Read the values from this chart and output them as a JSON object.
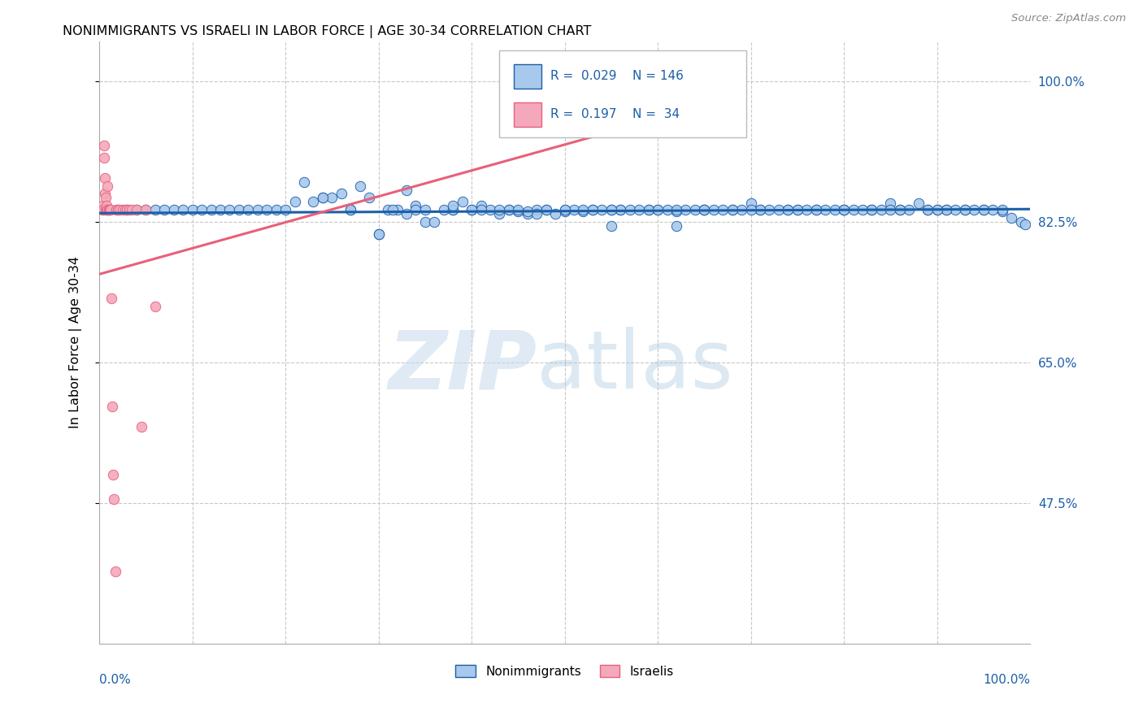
{
  "title": "NONIMMIGRANTS VS ISRAELI IN LABOR FORCE | AGE 30-34 CORRELATION CHART",
  "source": "Source: ZipAtlas.com",
  "ylabel": "In Labor Force | Age 30-34",
  "ytick_labels": [
    "100.0%",
    "82.5%",
    "65.0%",
    "47.5%"
  ],
  "ytick_values": [
    1.0,
    0.825,
    0.65,
    0.475
  ],
  "xlim": [
    0.0,
    1.0
  ],
  "ylim": [
    0.3,
    1.05
  ],
  "blue_color": "#A8C8EC",
  "pink_color": "#F4A8BC",
  "blue_line_color": "#1B5FA8",
  "pink_line_color": "#E8607A",
  "scatter_blue_x": [
    0.01,
    0.02,
    0.03,
    0.04,
    0.05,
    0.06,
    0.07,
    0.08,
    0.09,
    0.1,
    0.11,
    0.12,
    0.13,
    0.14,
    0.15,
    0.16,
    0.17,
    0.18,
    0.19,
    0.2,
    0.21,
    0.22,
    0.23,
    0.24,
    0.25,
    0.26,
    0.27,
    0.28,
    0.29,
    0.3,
    0.31,
    0.32,
    0.33,
    0.34,
    0.35,
    0.36,
    0.37,
    0.38,
    0.39,
    0.4,
    0.41,
    0.42,
    0.43,
    0.44,
    0.45,
    0.46,
    0.47,
    0.48,
    0.49,
    0.5,
    0.51,
    0.52,
    0.53,
    0.54,
    0.55,
    0.56,
    0.57,
    0.58,
    0.59,
    0.6,
    0.61,
    0.62,
    0.63,
    0.64,
    0.65,
    0.66,
    0.67,
    0.68,
    0.69,
    0.7,
    0.71,
    0.72,
    0.73,
    0.74,
    0.75,
    0.76,
    0.77,
    0.78,
    0.79,
    0.8,
    0.81,
    0.82,
    0.83,
    0.84,
    0.85,
    0.86,
    0.87,
    0.88,
    0.89,
    0.9,
    0.91,
    0.92,
    0.93,
    0.94,
    0.95,
    0.96,
    0.97,
    0.98,
    0.99,
    0.995,
    0.24,
    0.27,
    0.315,
    0.34,
    0.38,
    0.41,
    0.44,
    0.47,
    0.5,
    0.53,
    0.56,
    0.59,
    0.62,
    0.65,
    0.68,
    0.71,
    0.74,
    0.77,
    0.8,
    0.83,
    0.86,
    0.89,
    0.91,
    0.93,
    0.95,
    0.97,
    0.62,
    0.52,
    0.48,
    0.33,
    0.3,
    0.46,
    0.38,
    0.55,
    0.43,
    0.5,
    0.6,
    0.7,
    0.8,
    0.9,
    0.35,
    0.4,
    0.45,
    0.55,
    0.65,
    0.75,
    0.85
  ],
  "scatter_blue_y": [
    0.84,
    0.84,
    0.84,
    0.84,
    0.84,
    0.84,
    0.84,
    0.84,
    0.84,
    0.84,
    0.84,
    0.84,
    0.84,
    0.84,
    0.84,
    0.84,
    0.84,
    0.84,
    0.84,
    0.84,
    0.85,
    0.875,
    0.85,
    0.855,
    0.855,
    0.86,
    0.84,
    0.87,
    0.855,
    0.81,
    0.84,
    0.84,
    0.865,
    0.845,
    0.825,
    0.825,
    0.84,
    0.84,
    0.85,
    0.84,
    0.845,
    0.84,
    0.835,
    0.84,
    0.838,
    0.835,
    0.84,
    0.84,
    0.835,
    0.838,
    0.84,
    0.838,
    0.84,
    0.84,
    0.84,
    0.84,
    0.84,
    0.84,
    0.84,
    0.84,
    0.84,
    0.838,
    0.84,
    0.84,
    0.84,
    0.84,
    0.84,
    0.84,
    0.84,
    0.848,
    0.84,
    0.84,
    0.84,
    0.84,
    0.84,
    0.84,
    0.84,
    0.84,
    0.84,
    0.84,
    0.84,
    0.84,
    0.84,
    0.84,
    0.848,
    0.84,
    0.84,
    0.848,
    0.84,
    0.84,
    0.84,
    0.84,
    0.84,
    0.84,
    0.84,
    0.84,
    0.838,
    0.83,
    0.825,
    0.822,
    0.855,
    0.84,
    0.84,
    0.84,
    0.84,
    0.84,
    0.84,
    0.835,
    0.84,
    0.84,
    0.84,
    0.84,
    0.84,
    0.84,
    0.84,
    0.84,
    0.84,
    0.84,
    0.84,
    0.84,
    0.84,
    0.84,
    0.84,
    0.84,
    0.84,
    0.84,
    0.82,
    0.84,
    0.84,
    0.835,
    0.81,
    0.838,
    0.845,
    0.82,
    0.84,
    0.84,
    0.84,
    0.84,
    0.84,
    0.84,
    0.84,
    0.84,
    0.84,
    0.84,
    0.84,
    0.84,
    0.84
  ],
  "scatter_pink_x": [
    0.003,
    0.003,
    0.004,
    0.005,
    0.005,
    0.006,
    0.006,
    0.007,
    0.007,
    0.008,
    0.008,
    0.009,
    0.009,
    0.01,
    0.01,
    0.011,
    0.012,
    0.013,
    0.014,
    0.015,
    0.016,
    0.017,
    0.018,
    0.02,
    0.022,
    0.025,
    0.028,
    0.03,
    0.032,
    0.035,
    0.04,
    0.045,
    0.05,
    0.06
  ],
  "scatter_pink_y": [
    0.84,
    0.845,
    0.84,
    0.92,
    0.905,
    0.86,
    0.88,
    0.84,
    0.855,
    0.84,
    0.845,
    0.84,
    0.87,
    0.84,
    0.84,
    0.84,
    0.84,
    0.73,
    0.595,
    0.51,
    0.48,
    0.39,
    0.84,
    0.84,
    0.84,
    0.84,
    0.84,
    0.84,
    0.84,
    0.84,
    0.84,
    0.57,
    0.84,
    0.72
  ],
  "blue_trend_x": [
    0.0,
    1.0
  ],
  "blue_trend_y": [
    0.836,
    0.841
  ],
  "pink_trend_x": [
    0.0,
    0.62
  ],
  "pink_trend_y": [
    0.76,
    0.96
  ]
}
